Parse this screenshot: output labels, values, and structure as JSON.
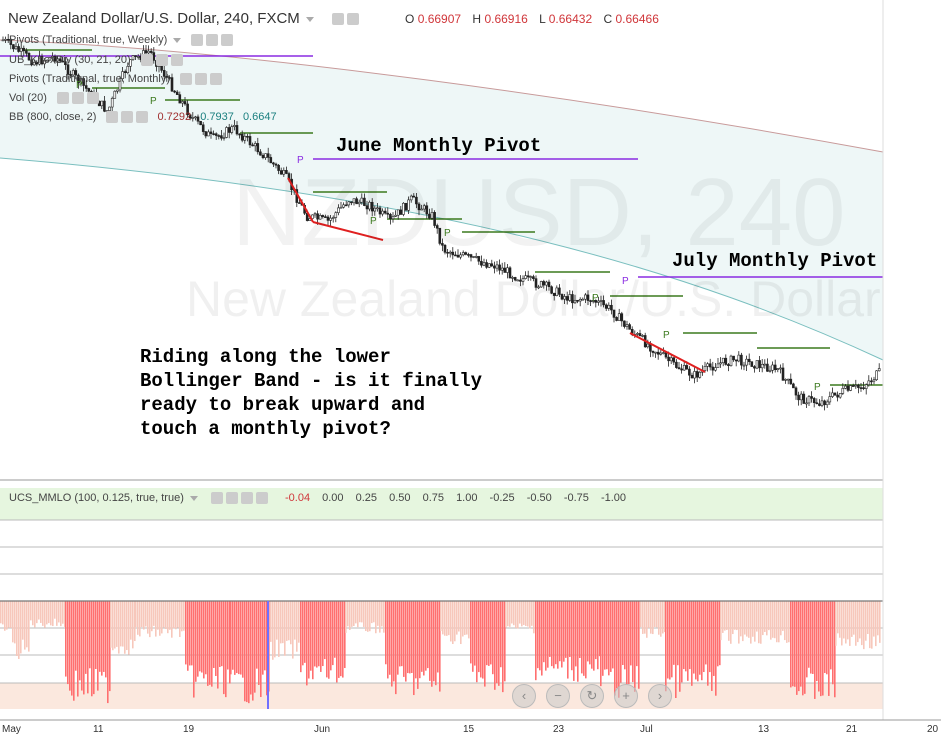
{
  "header": {
    "title": "New Zealand Dollar/U.S. Dollar, 240, FXCM",
    "ohlc": [
      {
        "key": "O",
        "value": "0.66907"
      },
      {
        "key": "H",
        "value": "0.66916"
      },
      {
        "key": "L",
        "value": "0.66432"
      },
      {
        "key": "C",
        "value": "0.66466"
      }
    ]
  },
  "studies": [
    "Pivots (Traditional, true, Weekly)",
    "UB_KnoxDiv (30, 21, 20)",
    "Pivots (Traditional, true, Monthly)",
    "Vol (20)",
    "BB (800, close, 2)"
  ],
  "bb_values": [
    "0.7292",
    "0.7937",
    "0.6647"
  ],
  "watermark": {
    "symbol": "NZDUSD, 240",
    "name": "New Zealand Dollar/U.S. Dollar"
  },
  "annotations": {
    "june": "June Monthly Pivot",
    "july": "July Monthly Pivot",
    "note": "Riding along the lower\nBollinger Band - is it finally\nready to break upward and\ntouch a monthly pivot?"
  },
  "oscillator": {
    "name": "UCS_MMLO (100, 0.125, true, true)",
    "values": [
      "-0.04",
      "0.00",
      "0.25",
      "0.50",
      "0.75",
      "1.00",
      "-0.25",
      "-0.50",
      "-0.75",
      "-1.00"
    ]
  },
  "pivot_marker": "P",
  "colors": {
    "up": "#2b2b2b",
    "monthly_pivot": "#8a2be2",
    "weekly_pivot": "#3c7a1e",
    "divergence": "#e02020",
    "band_fill": "#eef7f7",
    "osc_bar": "#ff6f6f",
    "osc_bar_light": "#f7c7bb"
  },
  "chart_data": {
    "type": "candlestick",
    "title": "New Zealand Dollar/U.S. Dollar, 240, FXCM",
    "x_ticks": [
      "May",
      "11",
      "19",
      "Jun",
      "15",
      "23",
      "Jul",
      "13",
      "21",
      "20"
    ],
    "close_path": [
      [
        "May 1",
        0.733
      ],
      [
        "May 4",
        0.729
      ],
      [
        "May 6",
        0.73
      ],
      [
        "May 8",
        0.726
      ],
      [
        "May 11",
        0.72
      ],
      [
        "May 13",
        0.729
      ],
      [
        "May 15",
        0.731
      ],
      [
        "May 17",
        0.725
      ],
      [
        "May 19",
        0.719
      ],
      [
        "May 21",
        0.715
      ],
      [
        "May 23",
        0.717
      ],
      [
        "May 26",
        0.712
      ],
      [
        "May 28",
        0.708
      ],
      [
        "May 30",
        0.701
      ],
      [
        "Jun 1",
        0.7
      ],
      [
        "Jun 3",
        0.704
      ],
      [
        "Jun 5",
        0.703
      ],
      [
        "Jun 7",
        0.7
      ],
      [
        "Jun 9",
        0.704
      ],
      [
        "Jun 11",
        0.701
      ],
      [
        "Jun 12",
        0.695
      ],
      [
        "Jun 15",
        0.693
      ],
      [
        "Jun 17",
        0.692
      ],
      [
        "Jun 19",
        0.69
      ],
      [
        "Jun 22",
        0.688
      ],
      [
        "Jun 24",
        0.686
      ],
      [
        "Jun 26",
        0.686
      ],
      [
        "Jun 28",
        0.684
      ],
      [
        "Jun 30",
        0.68
      ],
      [
        "Jul 2",
        0.677
      ],
      [
        "Jul 4",
        0.674
      ],
      [
        "Jul 6",
        0.672
      ],
      [
        "Jul 8",
        0.674
      ],
      [
        "Jul 10",
        0.675
      ],
      [
        "Jul 12",
        0.674
      ],
      [
        "Jul 14",
        0.673
      ],
      [
        "Jul 16",
        0.668
      ],
      [
        "Jul 18",
        0.667
      ],
      [
        "Jul 20",
        0.669
      ],
      [
        "Jul 22",
        0.67
      ],
      [
        "Jul 24",
        0.673
      ]
    ]
  }
}
